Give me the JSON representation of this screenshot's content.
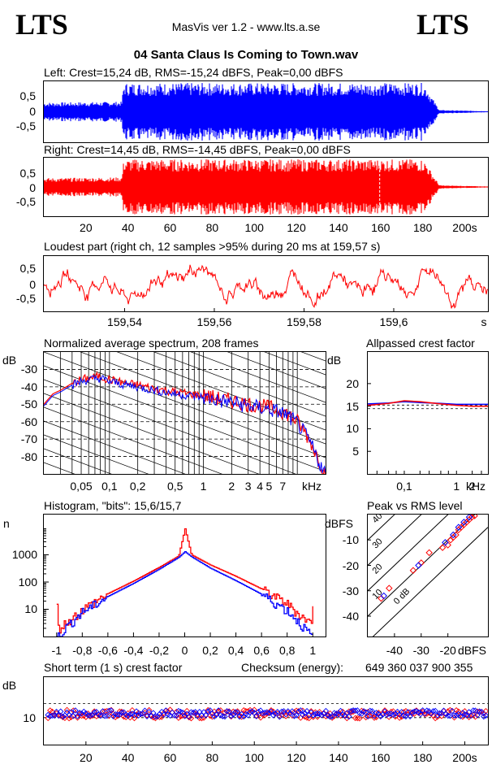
{
  "header": {
    "brand_left": "LTS",
    "brand_right": "LTS",
    "app_version": "MasVis ver 1.2 - www.lts.a.se",
    "file_name": "04 Santa Claus Is Coming to Town.wav"
  },
  "colors": {
    "left": "#0000ff",
    "right": "#ff0000",
    "background": "#ffffff",
    "axis": "#000000"
  },
  "chart_data": [
    {
      "id": "left",
      "type": "area",
      "title": "Left: Crest=15,24 dB, RMS=-15,24 dBFS, Peak=0,00 dBFS",
      "y_ticks": [
        "0,5",
        "0",
        "-0,5"
      ],
      "ylim": [
        -1,
        1
      ],
      "xlim": [
        0,
        211
      ],
      "envelope": {
        "t": [
          0,
          37,
          38,
          180,
          182,
          184,
          186,
          188,
          211
        ],
        "amp": [
          0.32,
          0.35,
          1.0,
          1.0,
          0.85,
          0.55,
          0.3,
          0.06,
          0.02
        ]
      }
    },
    {
      "id": "right",
      "type": "area",
      "title": "Right: Crest=14,45 dB, RMS=-14,45 dBFS, Peak=0,00 dBFS",
      "y_ticks": [
        "0,5",
        "0",
        "-0,5"
      ],
      "ylim": [
        -1,
        1
      ],
      "xlim": [
        0,
        211
      ],
      "x_ticks": [
        "20",
        "40",
        "60",
        "80",
        "100",
        "120",
        "140",
        "160",
        "180",
        "200s"
      ],
      "x_tick_values": [
        20,
        40,
        60,
        80,
        100,
        120,
        140,
        160,
        180,
        200
      ],
      "loudest_marker_s": 159.57,
      "envelope": {
        "t": [
          0,
          37,
          38,
          180,
          182,
          184,
          186,
          188,
          211
        ],
        "amp": [
          0.32,
          0.35,
          1.0,
          1.0,
          0.85,
          0.55,
          0.3,
          0.06,
          0.02
        ]
      }
    },
    {
      "id": "loudest",
      "type": "line",
      "title": "Loudest part (right ch, 12 samples >95% during 20 ms at 159,57 s)",
      "y_ticks": [
        "0,5",
        "0",
        "-0,5"
      ],
      "x_ticks": [
        "159,54",
        "159,56",
        "159,58",
        "159,6",
        "s"
      ],
      "x_tick_values": [
        159.54,
        159.56,
        159.58,
        159.6
      ],
      "xlim": [
        159.522,
        159.621
      ],
      "ylim": [
        -1,
        1
      ]
    },
    {
      "id": "spectrum",
      "type": "line",
      "title": "Normalized average spectrum, 208 frames",
      "ylabel": "dB",
      "y_ticks": [
        "-30",
        "-40",
        "-50",
        "-60",
        "-70",
        "-80"
      ],
      "y_tick_values": [
        -30,
        -40,
        -50,
        -60,
        -70,
        -80
      ],
      "ylim": [
        -90,
        -20
      ],
      "x_ticks": [
        "0,05",
        "0,1",
        "0,2",
        "0,5",
        "1",
        "2",
        "3",
        "4",
        "5",
        "7",
        "kHz"
      ],
      "x_tick_values": [
        0.05,
        0.1,
        0.2,
        0.5,
        1,
        2,
        3,
        4,
        5,
        7
      ],
      "xlim_khz": [
        0.02,
        20
      ],
      "series": [
        {
          "color": "#ff0000",
          "x": [
            0.02,
            0.025,
            0.03,
            0.04,
            0.05,
            0.06,
            0.08,
            0.1,
            0.15,
            0.2,
            0.3,
            0.5,
            0.7,
            1,
            1.5,
            2,
            3,
            4,
            5,
            6,
            7,
            8,
            10,
            12,
            14,
            17,
            20
          ],
          "y": [
            -50,
            -44,
            -42,
            -38,
            -36,
            -35,
            -34,
            -36,
            -38,
            -39,
            -41,
            -43,
            -44,
            -45,
            -47,
            -48,
            -50,
            -51,
            -52,
            -53,
            -54,
            -56,
            -60,
            -66,
            -72,
            -82,
            -90
          ]
        },
        {
          "color": "#0000ff",
          "x": [
            0.02,
            0.025,
            0.03,
            0.04,
            0.05,
            0.06,
            0.08,
            0.1,
            0.15,
            0.2,
            0.3,
            0.5,
            0.7,
            1,
            1.5,
            2,
            3,
            4,
            5,
            6,
            7,
            8,
            10,
            12,
            14,
            17,
            20
          ],
          "y": [
            -51,
            -45,
            -43,
            -39,
            -37,
            -36,
            -35,
            -37,
            -39,
            -40,
            -42,
            -44,
            -45,
            -46,
            -48,
            -49,
            -51,
            -52,
            -53,
            -54,
            -55,
            -57,
            -61,
            -67,
            -73,
            -83,
            -90
          ]
        }
      ]
    },
    {
      "id": "allpass",
      "type": "line",
      "title": "Allpassed crest factor",
      "ylabel": "dB",
      "y_ticks": [
        "20",
        "15",
        "10",
        "5"
      ],
      "y_tick_values": [
        20,
        15,
        10,
        5
      ],
      "ylim": [
        0,
        27
      ],
      "x_ticks": [
        "0,1",
        "1",
        "2",
        "kHz"
      ],
      "x_tick_values": [
        0.1,
        1,
        2
      ],
      "xlim_khz": [
        0.02,
        4
      ],
      "reference_levels": [
        15.24,
        14.45
      ],
      "series": [
        {
          "color": "#0000ff",
          "x": [
            0.02,
            0.05,
            0.1,
            0.2,
            0.5,
            1,
            2,
            4
          ],
          "y": [
            15.5,
            15.7,
            16.0,
            15.8,
            15.6,
            15.4,
            15.4,
            15.4
          ]
        },
        {
          "color": "#ff0000",
          "x": [
            0.02,
            0.05,
            0.1,
            0.2,
            0.5,
            1,
            2,
            4
          ],
          "y": [
            15.2,
            15.6,
            16.2,
            16.0,
            15.5,
            15.2,
            15.0,
            15.0
          ]
        }
      ]
    },
    {
      "id": "histogram",
      "type": "line",
      "title": "Histogram, \"bits\": 15,6/15,7",
      "ylabel": "n",
      "log_y": true,
      "y_ticks": [
        "1000",
        "100",
        "10"
      ],
      "y_tick_values": [
        1000,
        100,
        10
      ],
      "ylim": [
        1,
        30000
      ],
      "x_ticks": [
        "-1",
        "-0,8",
        "-0,6",
        "-0,4",
        "-0,2",
        "0",
        "0,2",
        "0,4",
        "0,6",
        "0,8",
        "1"
      ],
      "x_tick_values": [
        -1,
        -0.8,
        -0.6,
        -0.4,
        -0.2,
        0,
        0.2,
        0.4,
        0.6,
        0.8,
        1
      ],
      "xlim": [
        -1.1,
        1.1
      ],
      "series": [
        {
          "color": "#ff0000",
          "x": [
            -1,
            -0.99,
            -0.9,
            -0.8,
            -0.6,
            -0.4,
            -0.2,
            -0.05,
            0,
            0.05,
            0.2,
            0.4,
            0.6,
            0.8,
            0.9,
            0.99,
            1
          ],
          "y": [
            15,
            2,
            4,
            10,
            38,
            110,
            350,
            900,
            9000,
            1000,
            420,
            160,
            55,
            16,
            6,
            3,
            18
          ]
        },
        {
          "color": "#0000ff",
          "x": [
            -1,
            -0.99,
            -0.9,
            -0.8,
            -0.6,
            -0.4,
            -0.2,
            -0.05,
            0,
            0.05,
            0.2,
            0.4,
            0.6,
            0.8,
            0.9,
            0.99,
            1
          ],
          "y": [
            1,
            1,
            3,
            8,
            30,
            90,
            300,
            800,
            1300,
            850,
            320,
            110,
            35,
            9,
            3,
            1,
            1
          ]
        }
      ]
    },
    {
      "id": "peak_vs_rms",
      "type": "scatter",
      "title": "Peak vs RMS level",
      "ylabel": "dBFS",
      "xlabel": "dBFS",
      "y_ticks": [
        "-10",
        "-20",
        "-30",
        "-40"
      ],
      "y_tick_values": [
        -10,
        -20,
        -30,
        -40
      ],
      "ylim": [
        -48,
        0
      ],
      "x_ticks": [
        "-40",
        "-30",
        "-20"
      ],
      "x_tick_values": [
        -40,
        -30,
        -20
      ],
      "xlim": [
        -50,
        -5
      ],
      "crest_lines_db": [
        40,
        30,
        20,
        10,
        0
      ],
      "crest_labels": [
        "40",
        "30",
        "20",
        "10",
        "0 dB"
      ],
      "series": [
        {
          "color": "#ff0000",
          "points": [
            [
              -45,
              -33
            ],
            [
              -42,
              -29
            ],
            [
              -33,
              -22
            ],
            [
              -30,
              -19
            ],
            [
              -27,
              -15
            ],
            [
              -22,
              -13
            ],
            [
              -20,
              -12
            ],
            [
              -19,
              -10
            ],
            [
              -18,
              -9
            ],
            [
              -17,
              -8
            ],
            [
              -16,
              -6
            ],
            [
              -15,
              -5
            ],
            [
              -14,
              -4
            ],
            [
              -13,
              -3
            ],
            [
              -12,
              -2
            ],
            [
              -11,
              -1
            ],
            [
              -10,
              -0.5
            ]
          ]
        },
        {
          "color": "#0000ff",
          "points": [
            [
              -44,
              -32
            ],
            [
              -31,
              -20
            ],
            [
              -21,
              -11
            ],
            [
              -18,
              -8
            ],
            [
              -16,
              -5
            ],
            [
              -14,
              -3
            ],
            [
              -12,
              -1
            ]
          ]
        }
      ]
    },
    {
      "id": "short_crest",
      "type": "scatter",
      "title": "Short term (1 s) crest factor",
      "ylabel": "dB",
      "y_ticks": [
        "10"
      ],
      "y_tick_values": [
        10
      ],
      "ylim": [
        0,
        25
      ],
      "reference_levels": [
        15.24,
        14.45,
        10
      ],
      "x_ticks": [
        "20",
        "40",
        "60",
        "80",
        "100",
        "120",
        "140",
        "160",
        "180",
        "200s"
      ],
      "x_tick_values": [
        20,
        40,
        60,
        80,
        100,
        120,
        140,
        160,
        180,
        200
      ],
      "xlim": [
        0,
        211
      ],
      "series": [
        {
          "color": "#ff0000",
          "mean": 11.3,
          "spread": 1.6
        },
        {
          "color": "#0000ff",
          "mean": 11.5,
          "spread": 1.2
        }
      ]
    }
  ],
  "checksum": {
    "label": "Checksum (energy):",
    "value": "649 360 037 900 355"
  }
}
